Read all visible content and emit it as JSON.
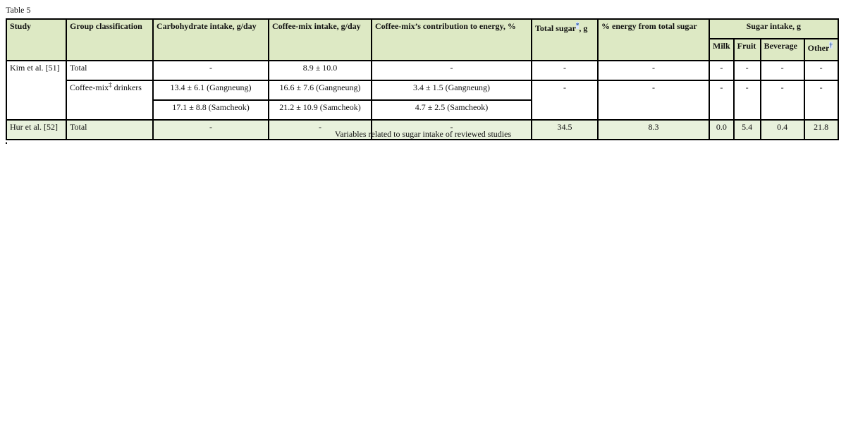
{
  "label": "Table 5",
  "caption": "Variables related to sugar intake of reviewed studies",
  "headers": {
    "study": "Study",
    "group": "Group classification",
    "carb": "Carbohydrate intake, g/day",
    "coffee_intake": "Coffee-mix intake, g/day",
    "coffee_energy": "Coffee-mix’s contribution to energy, %",
    "total_sugar": "Total sugar",
    "total_sugar_mark": "*",
    "total_sugar_unit": ", g",
    "pct_energy": "% energy from total sugar",
    "sugar_intake": "Sugar intake, g",
    "milk": "Milk",
    "fruit": "Fruit",
    "beverage": "Beverage",
    "other": "Other",
    "other_mark": "†"
  },
  "rows": {
    "kim": {
      "study": "Kim et al. [51]",
      "total": {
        "group": "Total",
        "carb": "-",
        "coffee_intake": "8.9 ± 10.0",
        "coffee_energy": "-",
        "total_sugar": "-",
        "pct_energy": "-",
        "milk": "-",
        "fruit": "-",
        "beverage": "-",
        "other": "-"
      },
      "drinkers": {
        "group": "Coffee-mix",
        "group_mark": "‡",
        "group_suffix": " drinkers",
        "carb_1": "13.4 ± 6.1 (Gangneung)",
        "carb_2": "17.1 ± 8.8 (Samcheok)",
        "coffee_intake_1": "16.6 ± 7.6 (Gangneung)",
        "coffee_intake_2": "21.2 ± 10.9 (Samcheok)",
        "coffee_energy_1": "3.4 ± 1.5 (Gangneung)",
        "coffee_energy_2": "4.7 ± 2.5 (Samcheok)",
        "total_sugar": "-",
        "pct_energy": "-",
        "milk": "-",
        "fruit": "-",
        "beverage": "-",
        "other": "-"
      }
    },
    "hur": {
      "study": "Hur et al. [52]",
      "group": "Total",
      "carb": "-",
      "coffee_intake": "-",
      "coffee_energy": "-",
      "total_sugar": "34.5",
      "pct_energy": "8.3",
      "milk": "0.0",
      "fruit": "5.4",
      "beverage": "0.4",
      "other": "21.8"
    }
  }
}
